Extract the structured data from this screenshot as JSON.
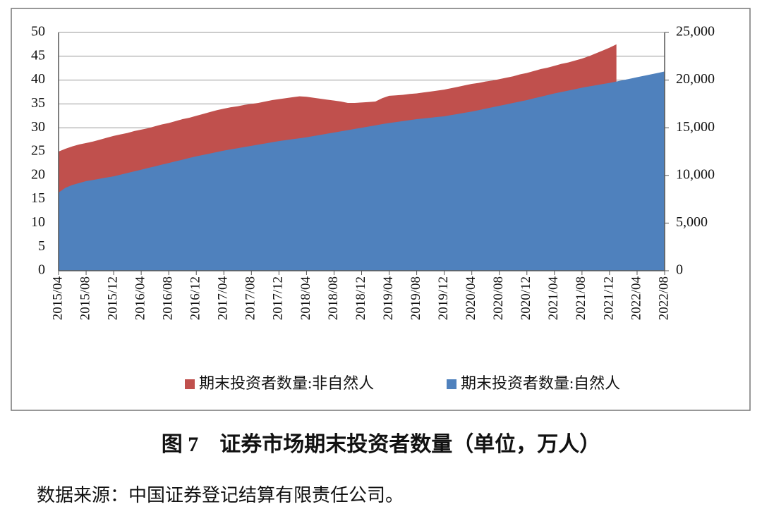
{
  "chart_data": {
    "type": "area",
    "categories": [
      "2015/04",
      null,
      null,
      null,
      "2015/08",
      null,
      null,
      null,
      "2015/12",
      null,
      null,
      null,
      "2016/04",
      null,
      null,
      null,
      "2016/08",
      null,
      null,
      null,
      "2016/12",
      null,
      null,
      null,
      "2017/04",
      null,
      null,
      null,
      "2017/08",
      null,
      null,
      null,
      "2017/12",
      null,
      null,
      null,
      "2018/04",
      null,
      null,
      null,
      "2018/08",
      null,
      null,
      null,
      "2018/12",
      null,
      null,
      null,
      "2019/04",
      null,
      null,
      null,
      "2019/08",
      null,
      null,
      null,
      "2019/12",
      null,
      null,
      null,
      "2020/04",
      null,
      null,
      null,
      "2020/08",
      null,
      null,
      null,
      "2020/12",
      null,
      null,
      null,
      "2021/04",
      null,
      null,
      null,
      "2021/08",
      null,
      null,
      null,
      "2021/12",
      null,
      null,
      null,
      "2022/04",
      null,
      null,
      null,
      "2022/08"
    ],
    "series": [
      {
        "name": "期末投资者数量:非自然人",
        "color": "#c0504d",
        "axis": "y",
        "values": [
          25,
          25.6,
          26.1,
          26.5,
          26.8,
          27.1,
          27.5,
          27.9,
          28.3,
          28.6,
          28.9,
          29.3,
          29.6,
          29.9,
          30.3,
          30.7,
          31,
          31.4,
          31.8,
          32.1,
          32.5,
          32.9,
          33.3,
          33.7,
          34,
          34.3,
          34.5,
          34.8,
          35,
          35.2,
          35.5,
          35.8,
          36,
          36.2,
          36.4,
          36.6,
          36.5,
          36.3,
          36.1,
          35.9,
          35.7,
          35.5,
          35.2,
          35.2,
          35.3,
          35.4,
          35.5,
          36.2,
          36.7,
          36.8,
          36.9,
          37.1,
          37.2,
          37.4,
          37.6,
          37.8,
          38,
          38.3,
          38.6,
          38.9,
          39.2,
          39.4,
          39.7,
          39.9,
          40.2,
          40.5,
          40.8,
          41.2,
          41.5,
          41.9,
          42.3,
          42.6,
          43,
          43.4,
          43.7,
          44.1,
          44.5,
          45,
          45.6,
          46.2,
          46.8,
          47.5,
          null,
          null,
          null,
          null,
          null,
          null,
          null
        ]
      },
      {
        "name": "期末投资者数量:自然人",
        "color": "#4f81bd",
        "axis": "y2",
        "values": [
          8200,
          8700,
          9000,
          9200,
          9400,
          9520,
          9650,
          9780,
          9900,
          10080,
          10250,
          10430,
          10600,
          10780,
          10950,
          11130,
          11300,
          11480,
          11650,
          11830,
          12000,
          12150,
          12300,
          12450,
          12600,
          12730,
          12850,
          12980,
          13100,
          13230,
          13350,
          13480,
          13600,
          13700,
          13800,
          13900,
          14000,
          14130,
          14250,
          14380,
          14500,
          14630,
          14750,
          14880,
          15000,
          15130,
          15250,
          15380,
          15500,
          15600,
          15700,
          15800,
          15900,
          15980,
          16050,
          16130,
          16200,
          16330,
          16450,
          16580,
          16700,
          16850,
          17000,
          17150,
          17300,
          17450,
          17600,
          17750,
          17900,
          18080,
          18250,
          18430,
          18600,
          18750,
          18900,
          19050,
          19200,
          19330,
          19450,
          19580,
          19700,
          19850,
          20000,
          20150,
          20300,
          20450,
          20600,
          20750,
          20900
        ]
      }
    ],
    "ylim": [
      0,
      50
    ],
    "yticks": [
      0,
      5,
      10,
      15,
      20,
      25,
      30,
      35,
      40,
      45,
      50
    ],
    "y2lim": [
      0,
      25000
    ],
    "y2ticks": [
      0,
      {
        "value": 5000,
        "label": "5,000"
      },
      {
        "value": 10000,
        "label": "10,000"
      },
      {
        "value": 15000,
        "label": "15,000"
      },
      {
        "value": 20000,
        "label": "20,000"
      },
      {
        "value": 25000,
        "label": "25,000"
      }
    ],
    "grid": true,
    "legend": "bottom"
  },
  "caption": "图 7　证券市场期末投资者数量（单位，万人）",
  "note": "数据来源：中国证券登记结算有限责任公司。"
}
